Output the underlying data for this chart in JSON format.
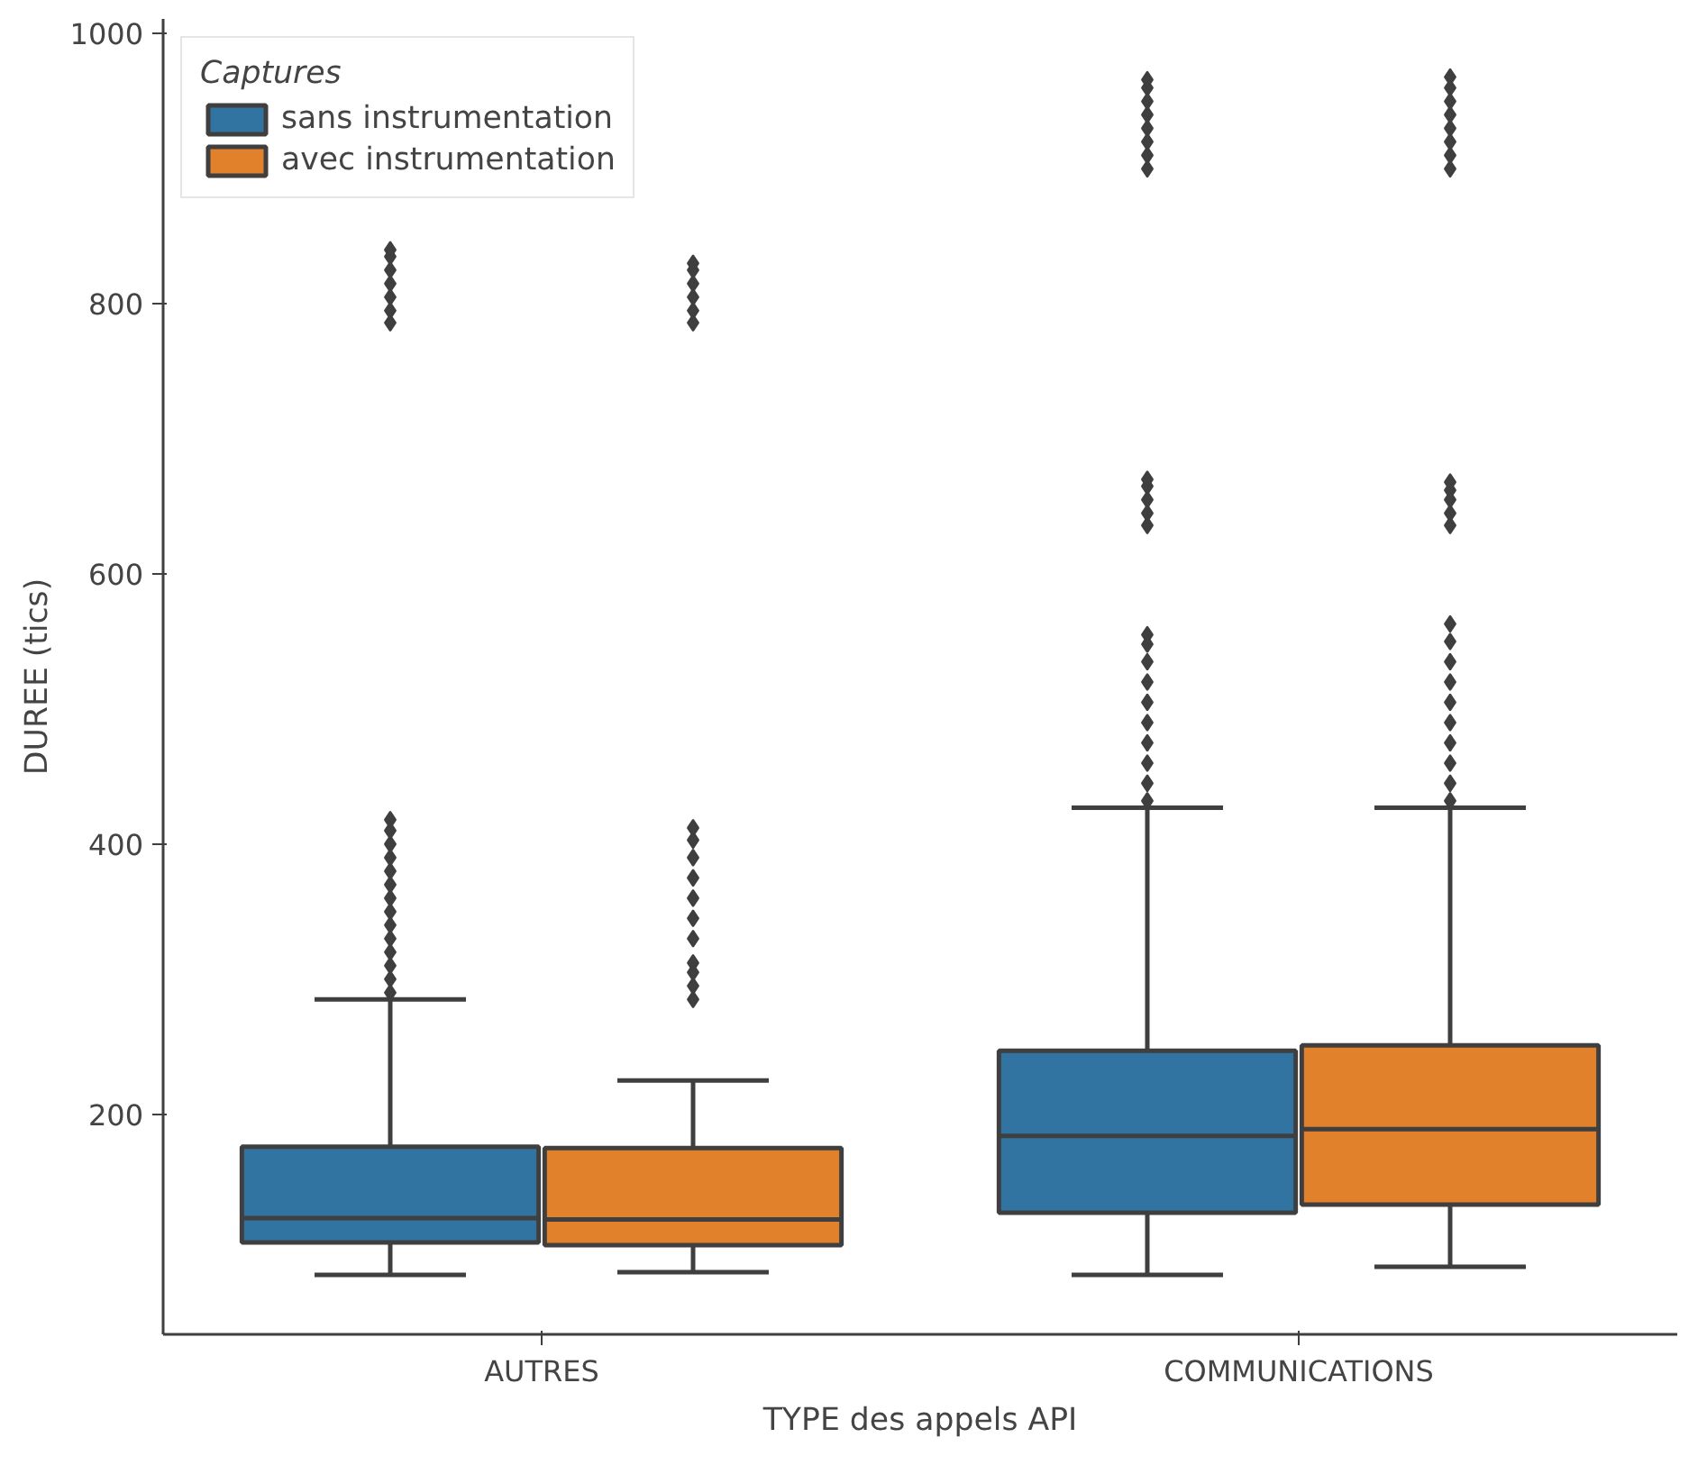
{
  "chart_data": {
    "type": "box",
    "xlabel": "TYPE des appels API",
    "ylabel": "DUREE (tics)",
    "legend_title": "Captures",
    "categories": [
      "AUTRES",
      "COMMUNICATIONS"
    ],
    "ylim": [
      37,
      1011
    ],
    "yticks": [
      200,
      400,
      600,
      800,
      1000
    ],
    "grid": false,
    "legend": "top left",
    "marker": "diamond",
    "series": [
      {
        "name": "sans instrumentation",
        "color": "#3274a1",
        "boxes": [
          {
            "low": 81,
            "q1": 105,
            "median": 123,
            "q3": 176,
            "high": 285,
            "outliers": [
              290,
              300,
              310,
              320,
              330,
              340,
              350,
              360,
              370,
              380,
              390,
              400,
              410,
              418,
              786,
              795,
              805,
              815,
              825,
              835,
              840
            ]
          },
          {
            "low": 81,
            "q1": 127,
            "median": 184,
            "q3": 247,
            "high": 427,
            "outliers": [
              432,
              445,
              460,
              475,
              490,
              505,
              520,
              535,
              548,
              555,
              636,
              645,
              655,
              665,
              670,
              900,
              910,
              920,
              930,
              940,
              950,
              960,
              966
            ]
          }
        ]
      },
      {
        "name": "avec instrumentation",
        "color": "#e1812c",
        "boxes": [
          {
            "low": 83,
            "q1": 103,
            "median": 122,
            "q3": 175,
            "high": 225,
            "outliers": [
              285,
              295,
              305,
              312,
              330,
              345,
              360,
              375,
              390,
              403,
              412,
              786,
              795,
              805,
              815,
              825,
              830
            ]
          },
          {
            "low": 87,
            "q1": 133,
            "median": 189,
            "q3": 251,
            "high": 427,
            "outliers": [
              432,
              445,
              460,
              475,
              490,
              505,
              520,
              535,
              550,
              563,
              636,
              645,
              655,
              662,
              668,
              900,
              910,
              920,
              930,
              940,
              950,
              960,
              968
            ]
          }
        ]
      }
    ]
  }
}
